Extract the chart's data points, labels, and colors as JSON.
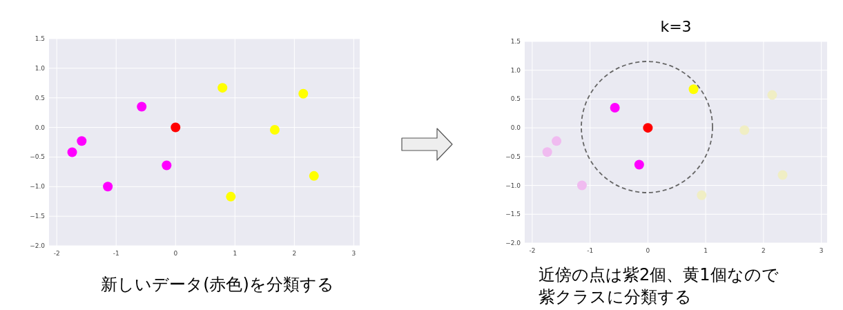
{
  "chart_data": [
    {
      "type": "scatter",
      "xlim": [
        -2.13,
        3.1
      ],
      "ylim": [
        -2.0,
        1.5
      ],
      "xticks": [
        -2,
        -1,
        0,
        1,
        2,
        3
      ],
      "yticks": [
        {
          "value": -2.0,
          "label": "−2.0"
        },
        {
          "value": -1.5,
          "label": "−1.5"
        },
        {
          "value": -1.0,
          "label": "−1.0"
        },
        {
          "value": -0.5,
          "label": "−0.5"
        },
        {
          "value": 0.0,
          "label": "0.0"
        },
        {
          "value": 0.5,
          "label": "0.5"
        },
        {
          "value": 1.0,
          "label": "1.0"
        },
        {
          "value": 1.5,
          "label": "1.5"
        }
      ],
      "grid": true,
      "marker": "circle",
      "annotations": [
        "新しいデータ(赤色)を分類する"
      ],
      "series": [
        {
          "color": "#ff00ff",
          "x": [
            -0.57,
            -1.58,
            -1.74,
            -1.14,
            -0.15
          ],
          "values": [
            0.35,
            -0.23,
            -0.42,
            -1.0,
            -0.64
          ]
        },
        {
          "color": "#ffff00",
          "x": [
            0.79,
            2.15,
            1.67,
            2.33,
            0.93
          ],
          "values": [
            0.67,
            0.57,
            -0.04,
            -0.82,
            -1.17
          ]
        },
        {
          "color": "#ff0000",
          "x": [
            0
          ],
          "values": [
            0
          ]
        }
      ]
    },
    {
      "type": "scatter",
      "title": "k=3",
      "xlim": [
        -2.13,
        3.1
      ],
      "ylim": [
        -2.0,
        1.5
      ],
      "xticks": [
        -2,
        -1,
        0,
        1,
        2,
        3
      ],
      "yticks": [
        {
          "value": -2.0,
          "label": "−2.0"
        },
        {
          "value": -1.5,
          "label": "−1.5"
        },
        {
          "value": -1.0,
          "label": "−1.0"
        },
        {
          "value": -0.5,
          "label": "−0.5"
        },
        {
          "value": 0.0,
          "label": "0.0"
        },
        {
          "value": 0.5,
          "label": "0.5"
        },
        {
          "value": 1.0,
          "label": "1.0"
        },
        {
          "value": 1.5,
          "label": "1.5"
        }
      ],
      "grid": true,
      "marker": "circle",
      "annotations": [
        "近傍の点は紫2個、黄1個なので紫クラスに分類する"
      ],
      "series": [
        {
          "color": "#f0bbf0",
          "x": [
            -1.58,
            -1.74,
            -1.14
          ],
          "values": [
            -0.23,
            -0.42,
            -1.0
          ]
        },
        {
          "color": "#f0eec4",
          "x": [
            2.15,
            1.67,
            2.33,
            0.93
          ],
          "values": [
            0.57,
            -0.04,
            -0.82,
            -1.17
          ]
        },
        {
          "color": "#ff00ff",
          "x": [
            -0.57,
            -0.15
          ],
          "values": [
            0.35,
            -0.64
          ]
        },
        {
          "color": "#ffff00",
          "x": [
            0.79
          ],
          "values": [
            0.67
          ]
        },
        {
          "color": "#ff0000",
          "x": [
            0
          ],
          "values": [
            0
          ]
        }
      ]
    }
  ]
}
